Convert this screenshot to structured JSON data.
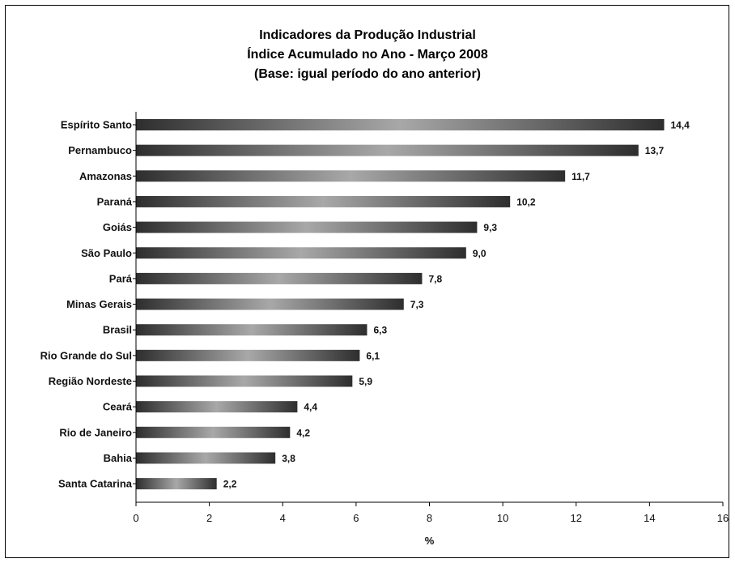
{
  "chart_data": {
    "type": "bar",
    "orientation": "horizontal",
    "title_lines": [
      "Indicadores da Produção Industrial",
      "Índice Acumulado no Ano - Março 2008",
      "(Base: igual período do ano anterior)"
    ],
    "xlabel": "%",
    "ylabel": "",
    "xlim": [
      0,
      16
    ],
    "xticks": [
      "0",
      "2",
      "4",
      "6",
      "8",
      "10",
      "12",
      "14",
      "16"
    ],
    "grid": false,
    "legend": "none",
    "categories": [
      "Espírito Santo",
      "Pernambuco",
      "Amazonas",
      "Paraná",
      "Goiás",
      "São Paulo",
      "Pará",
      "Minas Gerais",
      "Brasil",
      "Rio Grande do Sul",
      "Região Nordeste",
      "Ceará",
      "Rio de Janeiro",
      "Bahia",
      "Santa Catarina"
    ],
    "values": [
      14.4,
      13.7,
      11.7,
      10.2,
      9.3,
      9.0,
      7.8,
      7.3,
      6.3,
      6.1,
      5.9,
      4.4,
      4.2,
      3.8,
      2.2
    ],
    "value_labels": [
      "14,4",
      "13,7",
      "11,7",
      "10,2",
      "9,3",
      "9,0",
      "7,8",
      "7,3",
      "6,3",
      "6,1",
      "5,9",
      "4,4",
      "4,2",
      "3,8",
      "2,2"
    ],
    "colors": {
      "bar_dark": "#2e2e2e",
      "bar_light": "#a8a8a8",
      "axis": "#000000"
    }
  }
}
